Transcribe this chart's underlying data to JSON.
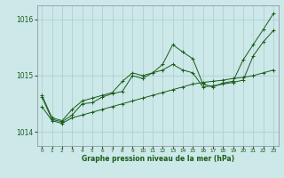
{
  "background_color": "#cce8e8",
  "grid_color": "#aacccc",
  "line_color": "#1a5c1a",
  "marker_color": "#1a5c1a",
  "xlabel": "Graphe pression niveau de la mer (hPa)",
  "ylim": [
    1013.75,
    1016.25
  ],
  "xlim": [
    -0.5,
    23.5
  ],
  "yticks": [
    1014,
    1015,
    1016
  ],
  "xticks": [
    0,
    1,
    2,
    3,
    4,
    5,
    6,
    7,
    8,
    9,
    10,
    11,
    12,
    13,
    14,
    15,
    16,
    17,
    18,
    19,
    20,
    21,
    22,
    23
  ],
  "series": [
    [
      1014.45,
      1014.2,
      1014.15,
      1014.25,
      1014.3,
      1014.35,
      1014.4,
      1014.45,
      1014.5,
      1014.55,
      1014.6,
      1014.65,
      1014.7,
      1014.75,
      1014.8,
      1014.85,
      1014.88,
      1014.9,
      1014.92,
      1014.95,
      1014.97,
      1015.0,
      1015.05,
      1015.1
    ],
    [
      1014.65,
      1014.25,
      1014.2,
      1014.4,
      1014.55,
      1014.6,
      1014.65,
      1014.7,
      1014.9,
      1015.05,
      1015.0,
      1015.05,
      1015.1,
      1015.2,
      1015.1,
      1015.05,
      1014.8,
      1014.82,
      1014.85,
      1014.88,
      1014.92,
      1015.35,
      1015.6,
      1015.8
    ],
    [
      1014.62,
      1014.22,
      1014.18,
      1014.3,
      1014.5,
      1014.52,
      1014.62,
      1014.68,
      1014.72,
      1015.0,
      1014.95,
      1015.05,
      1015.2,
      1015.55,
      1015.42,
      1015.3,
      1014.85,
      1014.8,
      1014.87,
      1014.9,
      1015.28,
      1015.55,
      1015.82,
      1016.1
    ]
  ]
}
